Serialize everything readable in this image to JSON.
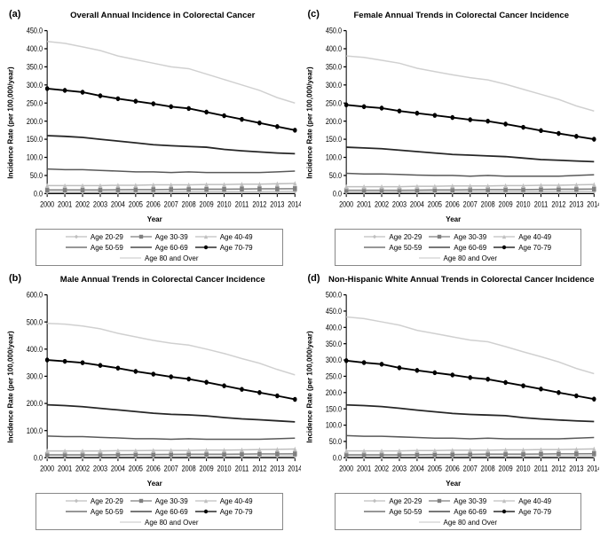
{
  "years": [
    2000,
    2001,
    2002,
    2003,
    2004,
    2005,
    2006,
    2007,
    2008,
    2009,
    2010,
    2011,
    2012,
    2013,
    2014
  ],
  "series_defs": [
    {
      "id": "age20",
      "label": "Age 20-29",
      "color": "#bfbfbf",
      "width": 1.2,
      "marker": "diamond"
    },
    {
      "id": "age30",
      "label": "Age 30-39",
      "color": "#7f7f7f",
      "width": 1.2,
      "marker": "square"
    },
    {
      "id": "age40",
      "label": "Age 40-49",
      "color": "#bfbfbf",
      "width": 1.2,
      "marker": "triangle"
    },
    {
      "id": "age50",
      "label": "Age 50-59",
      "color": "#595959",
      "width": 1.2,
      "marker": "none"
    },
    {
      "id": "age60",
      "label": "Age 60-69",
      "color": "#262626",
      "width": 1.4,
      "marker": "none"
    },
    {
      "id": "age70",
      "label": "Age 70-79",
      "color": "#000000",
      "width": 1.5,
      "marker": "circle"
    },
    {
      "id": "age80",
      "label": "Age 80 and Over",
      "color": "#d0d0d0",
      "width": 1.2,
      "marker": "none"
    }
  ],
  "panels": {
    "a": {
      "label": "(a)",
      "title": "Overall Annual Incidence in Colorectal Cancer",
      "ymax": 450,
      "ystep": 50,
      "data": {
        "age20": [
          4,
          4,
          4,
          4.2,
          4.3,
          4.5,
          4.6,
          4.8,
          5,
          5,
          5.2,
          5.3,
          5.5,
          5.7,
          6
        ],
        "age30": [
          10,
          10,
          10,
          10,
          10.5,
          11,
          11,
          11.5,
          12,
          12,
          12,
          12.5,
          13,
          13,
          13.5
        ],
        "age40": [
          22,
          22,
          22,
          22,
          23,
          23,
          24,
          24,
          24,
          25,
          25,
          26,
          26,
          27,
          28
        ],
        "age50": [
          68,
          66,
          66,
          64,
          62,
          60,
          60,
          58,
          60,
          58,
          58,
          58,
          58,
          60,
          62
        ],
        "age60": [
          160,
          158,
          155,
          150,
          145,
          140,
          135,
          132,
          130,
          128,
          122,
          118,
          115,
          112,
          110
        ],
        "age70": [
          290,
          285,
          280,
          270,
          262,
          255,
          248,
          240,
          235,
          225,
          215,
          205,
          195,
          185,
          175
        ],
        "age80": [
          420,
          415,
          405,
          395,
          380,
          370,
          360,
          350,
          345,
          330,
          315,
          300,
          285,
          265,
          250
        ]
      }
    },
    "b": {
      "label": "(b)",
      "title": "Male Annual Trends in Colorectal Cancer Incidence",
      "ymax": 600,
      "ystep": 100,
      "data": {
        "age20": [
          4,
          4,
          4,
          4.2,
          4.3,
          4.5,
          4.6,
          4.8,
          5,
          5,
          5.2,
          5.3,
          5.5,
          5.8,
          6.2
        ],
        "age30": [
          11,
          11,
          11,
          11,
          11.5,
          12,
          12,
          12.5,
          13,
          13,
          13,
          13.5,
          14,
          14,
          14.5
        ],
        "age40": [
          25,
          25,
          25,
          25,
          26,
          26,
          27,
          27,
          27,
          28,
          28,
          29,
          30,
          31,
          32
        ],
        "age50": [
          80,
          78,
          78,
          75,
          73,
          70,
          70,
          68,
          70,
          68,
          68,
          68,
          68,
          70,
          72
        ],
        "age60": [
          195,
          192,
          188,
          182,
          176,
          170,
          164,
          160,
          158,
          154,
          148,
          143,
          140,
          136,
          132
        ],
        "age70": [
          360,
          355,
          350,
          340,
          330,
          318,
          308,
          298,
          290,
          278,
          265,
          252,
          240,
          228,
          215
        ],
        "age80": [
          495,
          492,
          485,
          475,
          458,
          445,
          432,
          422,
          415,
          400,
          384,
          365,
          348,
          325,
          305
        ]
      }
    },
    "c": {
      "label": "(c)",
      "title": "Female Annual Trends in Colorectal Cancer Incidence",
      "ymax": 450,
      "ystep": 50,
      "data": {
        "age20": [
          4,
          4,
          4,
          4.1,
          4.2,
          4.4,
          4.5,
          4.7,
          4.9,
          5,
          5.1,
          5.2,
          5.4,
          5.6,
          5.8
        ],
        "age30": [
          9,
          9,
          9,
          9,
          9.5,
          10,
          10,
          10.5,
          11,
          11,
          11,
          11.5,
          12,
          12,
          12.5
        ],
        "age40": [
          19,
          19,
          19,
          19,
          20,
          20,
          21,
          21,
          21,
          22,
          22,
          23,
          23,
          24,
          25
        ],
        "age50": [
          56,
          54,
          54,
          53,
          51,
          50,
          50,
          48,
          50,
          48,
          48,
          48,
          48,
          50,
          52
        ],
        "age60": [
          128,
          126,
          124,
          120,
          116,
          112,
          108,
          106,
          104,
          102,
          98,
          94,
          92,
          90,
          88
        ],
        "age70": [
          245,
          240,
          236,
          228,
          222,
          216,
          210,
          204,
          200,
          192,
          183,
          174,
          166,
          158,
          150
        ],
        "age80": [
          380,
          376,
          368,
          360,
          346,
          337,
          328,
          320,
          314,
          302,
          288,
          274,
          260,
          242,
          228
        ]
      }
    },
    "d": {
      "label": "(d)",
      "title": "Non-Hispanic White Annual Trends in Colorectal Cancer Incidence",
      "ymax": 500,
      "ystep": 50,
      "data": {
        "age20": [
          3.5,
          3.5,
          3.5,
          3.7,
          3.8,
          4,
          4.1,
          4.3,
          4.5,
          4.5,
          4.7,
          4.8,
          5,
          5.2,
          5.5
        ],
        "age30": [
          9,
          9,
          9,
          9,
          9.5,
          10,
          10,
          10.5,
          11,
          11,
          11,
          11.5,
          12,
          12,
          12.5
        ],
        "age40": [
          21,
          21,
          21,
          21,
          22,
          22,
          23,
          23,
          23,
          24,
          24,
          25,
          25,
          26,
          27
        ],
        "age50": [
          68,
          66,
          66,
          64,
          62,
          60,
          60,
          58,
          60,
          58,
          58,
          58,
          58,
          60,
          62
        ],
        "age60": [
          162,
          160,
          157,
          152,
          146,
          141,
          136,
          133,
          131,
          129,
          123,
          119,
          116,
          113,
          111
        ],
        "age70": [
          298,
          292,
          287,
          276,
          268,
          261,
          254,
          246,
          241,
          231,
          221,
          211,
          200,
          190,
          180
        ],
        "age80": [
          432,
          427,
          417,
          407,
          391,
          381,
          371,
          361,
          356,
          341,
          325,
          310,
          294,
          274,
          258
        ]
      }
    }
  },
  "xlabel": "Year",
  "ylabel": "Incidence Rate (per 100,000/year)",
  "axis_color": "#000000",
  "background_color": "#ffffff",
  "title_fontsize": 9.5,
  "label_fontsize": 8,
  "tick_fontsize": 7
}
